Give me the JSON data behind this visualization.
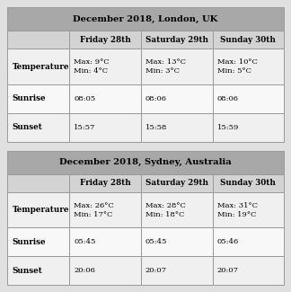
{
  "london_title": "December 2018, London, UK",
  "sydney_title": "December 2018, Sydney, Australia",
  "col_headers": [
    "",
    "Friday 28th",
    "Saturday 29th",
    "Sunday 30th"
  ],
  "london_rows": [
    [
      "Temperature",
      "Max: 9°C\nMin: 4°C",
      "Max: 13°C\nMin: 3°C",
      "Max: 10°C\nMin: 5°C"
    ],
    [
      "Sunrise",
      "08:05",
      "08:06",
      "08:06"
    ],
    [
      "Sunset",
      "15:57",
      "15:58",
      "15:59"
    ]
  ],
  "sydney_rows": [
    [
      "Temperature",
      "Max: 26°C\nMin: 17°C",
      "Max: 28°C\nMin: 18°C",
      "Max: 31°C\nMin: 19°C"
    ],
    [
      "Sunrise",
      "05:45",
      "05:45",
      "05:46"
    ],
    [
      "Sunset",
      "20:06",
      "20:07",
      "20:07"
    ]
  ],
  "title_bg": "#a8a8a8",
  "subheader_bg": "#d3d3d3",
  "row_bg_0": "#f0f0f0",
  "row_bg_1": "#f8f8f8",
  "row_bg_2": "#f0f0f0",
  "border_color": "#999999",
  "fig_bg": "#e0e0e0",
  "title_fontsize": 7.2,
  "header_fontsize": 6.3,
  "cell_fontsize": 6.0,
  "label_fontsize": 6.3
}
